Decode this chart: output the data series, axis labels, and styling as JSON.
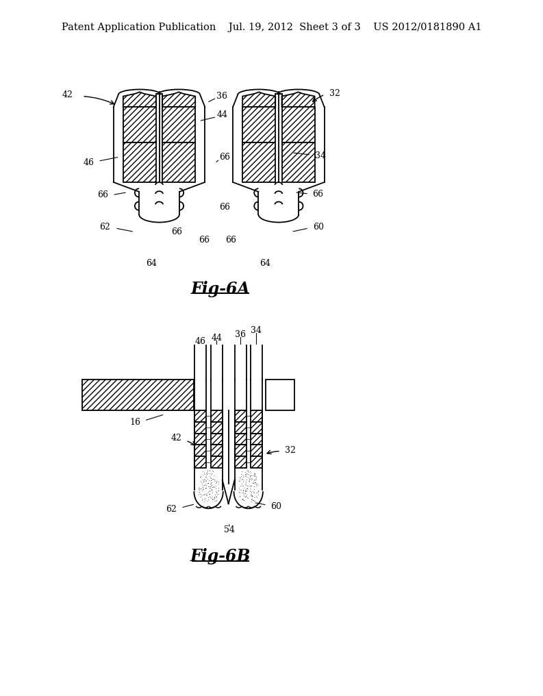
{
  "bg_color": "#ffffff",
  "line_color": "#000000",
  "header_text": "Patent Application Publication    Jul. 19, 2012  Sheet 3 of 3    US 2012/0181890 A1",
  "fig6a_label": "Fig-6A",
  "fig6b_label": "Fig-6B",
  "header_fontsize": 10.5,
  "label_fontsize": 9,
  "figlabel_fontsize": 17
}
